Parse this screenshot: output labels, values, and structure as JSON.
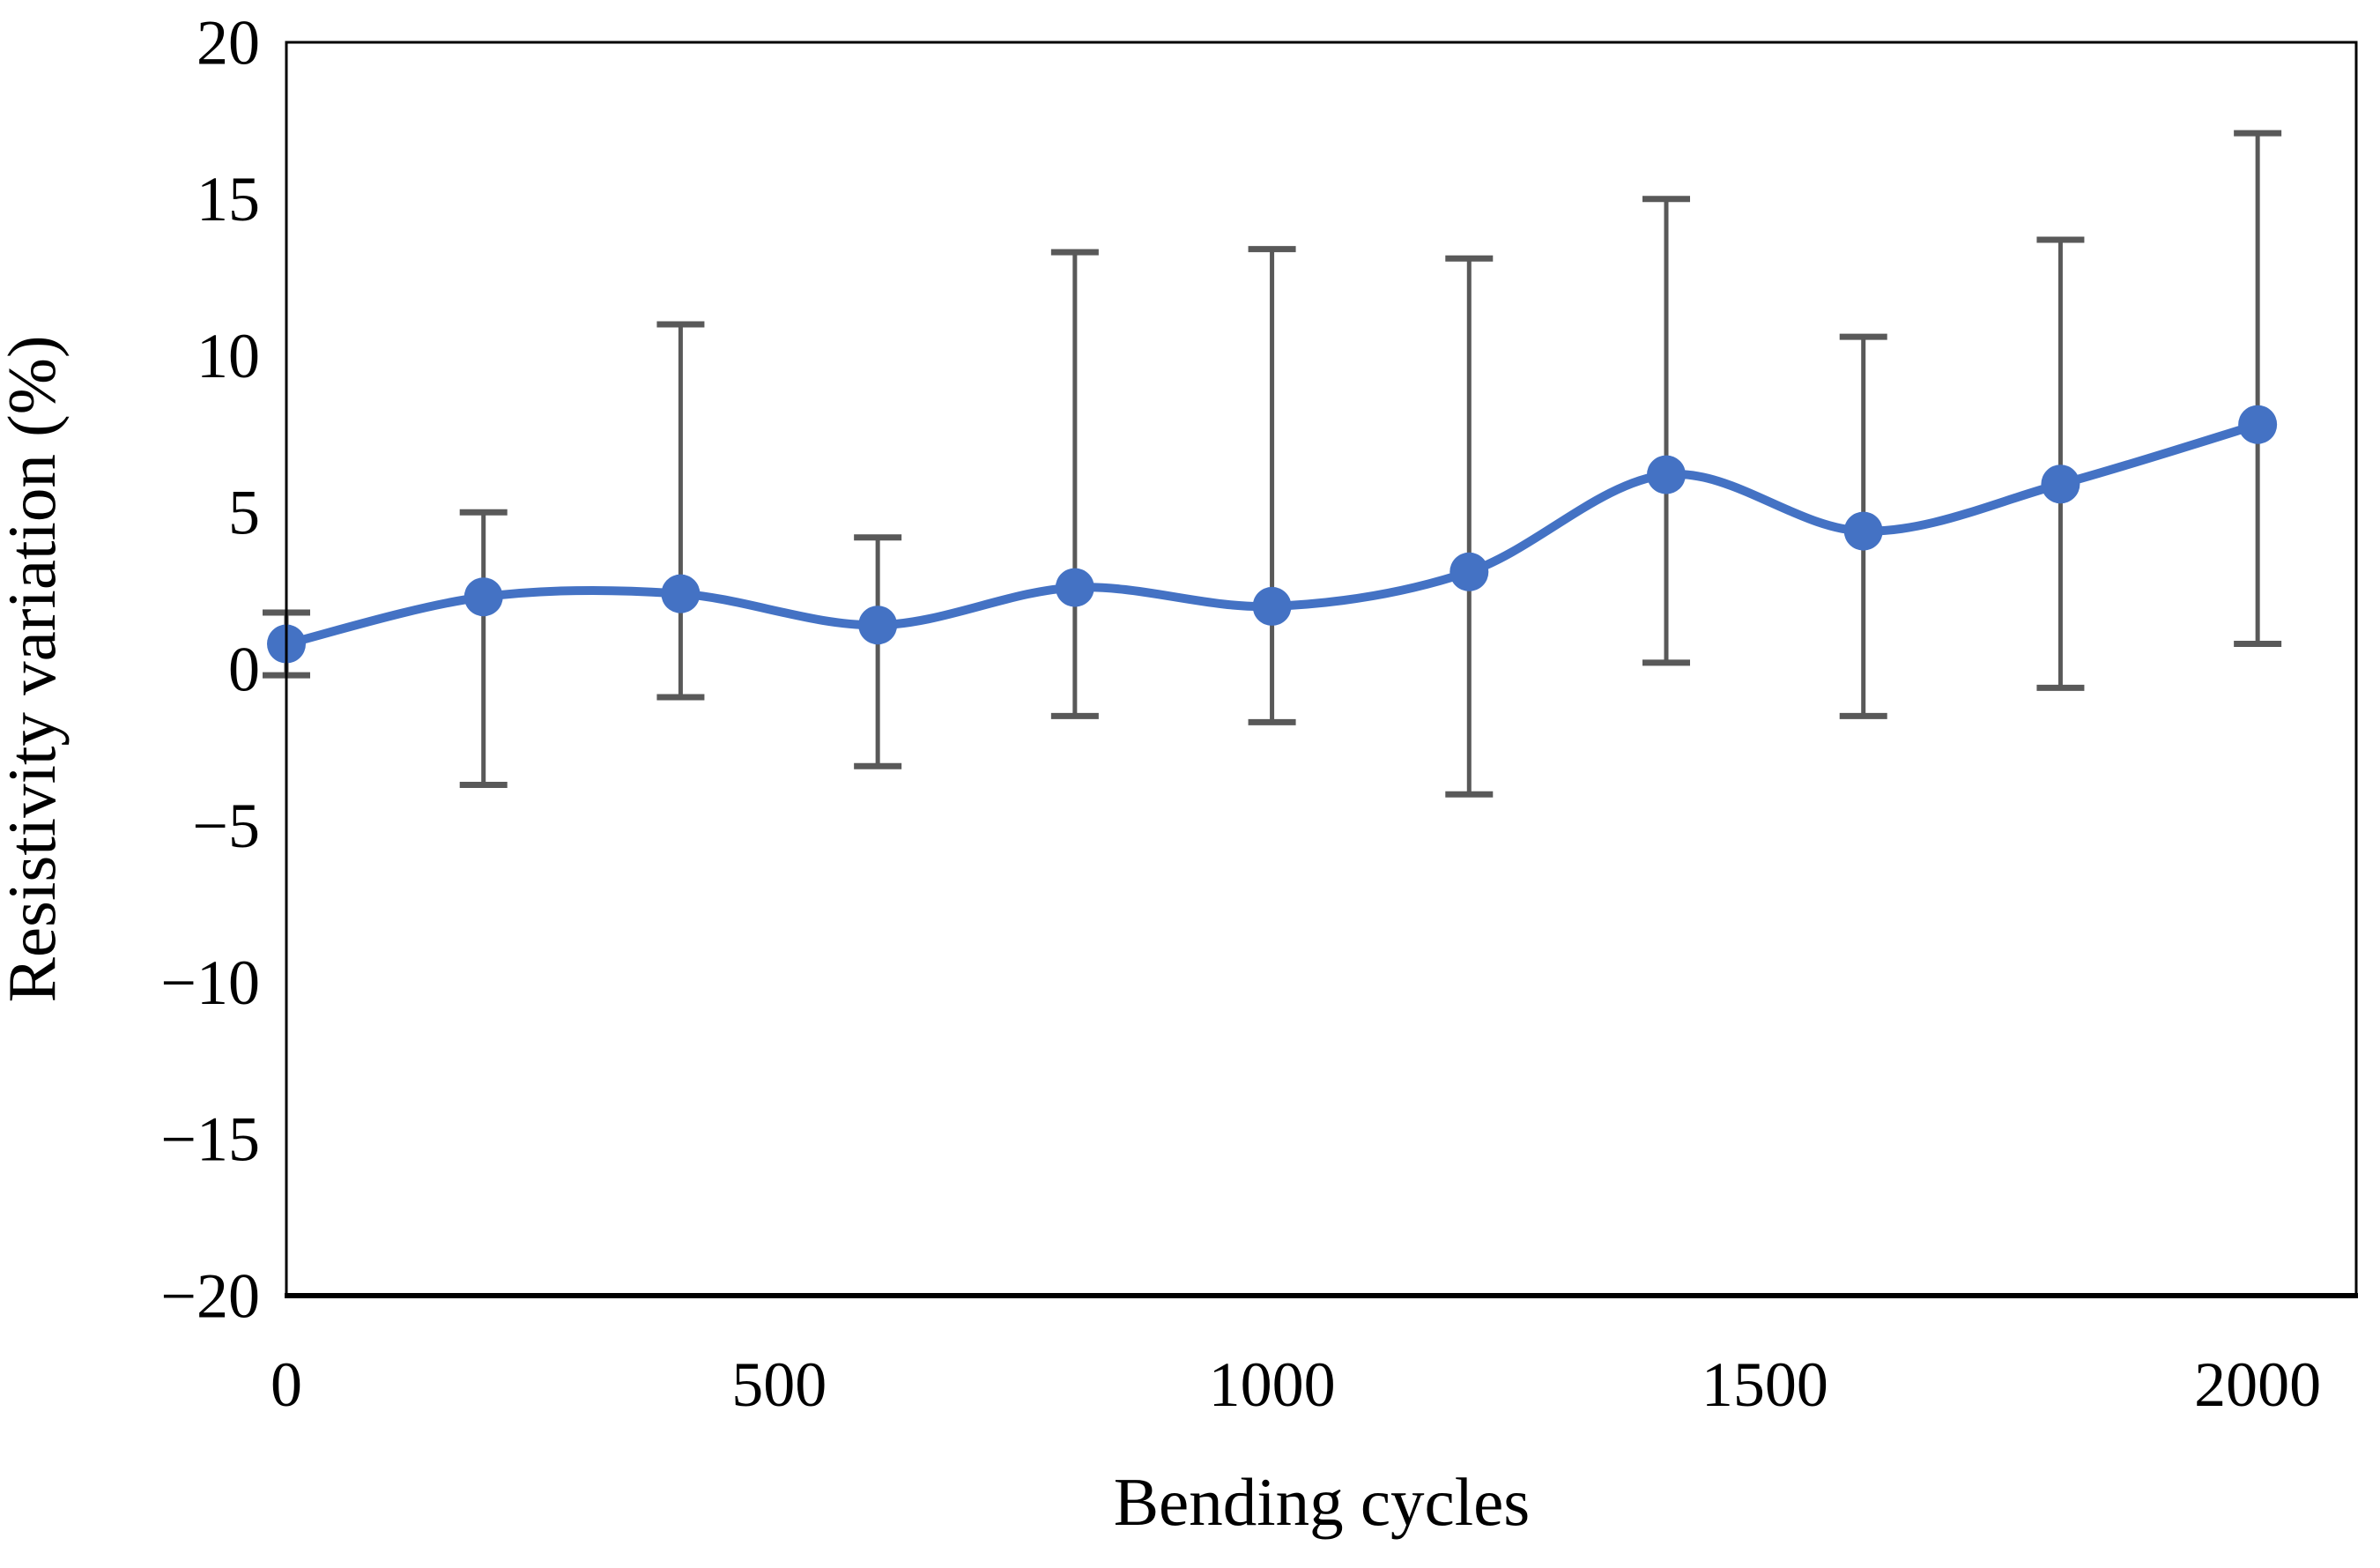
{
  "figure": {
    "background_color": "#ffffff",
    "plot_border_color": "#000000"
  },
  "chart_data": {
    "type": "line",
    "title": "",
    "xlabel": "Bending cycles",
    "ylabel": "Resistivity variation (%)",
    "x": [
      0,
      200,
      400,
      600,
      800,
      1000,
      1200,
      1400,
      1600,
      1800,
      2000
    ],
    "series": [
      {
        "name": "Resistivity variation",
        "values": [
          0.8,
          2.3,
          2.4,
          1.4,
          2.6,
          2.0,
          3.1,
          6.2,
          4.4,
          5.9,
          7.8
        ],
        "error_bar_top": [
          1.8,
          5.0,
          11.0,
          4.2,
          13.3,
          13.4,
          13.1,
          15.0,
          10.6,
          13.7,
          17.1
        ],
        "error_bar_bottom": [
          -0.2,
          -3.7,
          -0.9,
          -3.1,
          -1.5,
          -1.7,
          -4.0,
          0.2,
          -1.5,
          -0.6,
          0.8
        ]
      }
    ],
    "x_ticks": [
      0,
      500,
      1000,
      1500,
      2000
    ],
    "x_tick_labels": [
      "0",
      "500",
      "1000",
      "1500",
      "2000"
    ],
    "y_ticks": [
      20,
      15,
      10,
      5,
      0,
      -5,
      -10,
      -15,
      -20
    ],
    "y_tick_labels": [
      "20",
      "15",
      "10",
      "5",
      "0",
      "−5",
      "−10",
      "−15",
      "−20"
    ],
    "xlim": [
      0,
      2100
    ],
    "ylim": [
      -20,
      20
    ],
    "grid": false,
    "legend_position": "none",
    "smooth_line": true,
    "line_color": "#4472C4",
    "marker_color": "#4472C4",
    "error_bar_color": "#595959",
    "axis_color": "#000000"
  }
}
